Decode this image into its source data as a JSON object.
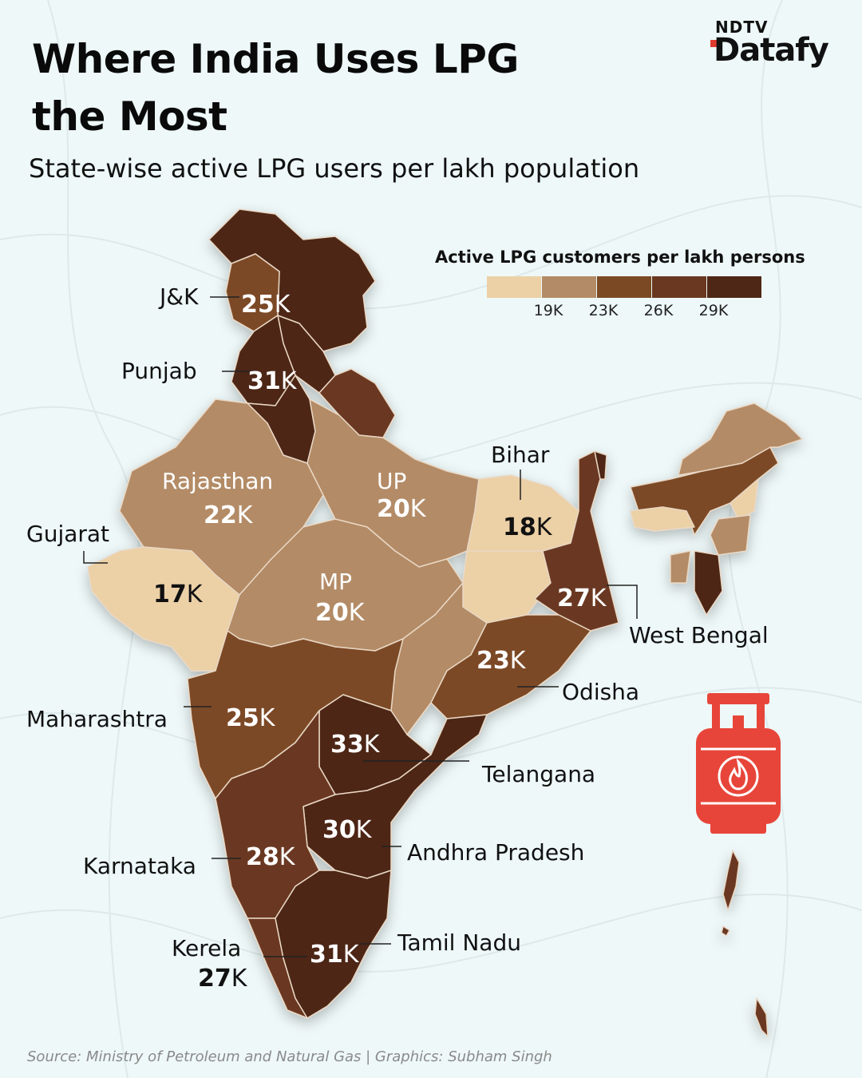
{
  "title": "Where India Uses LPG the Most",
  "subtitle": "State-wise active LPG users per lakh population",
  "brand": {
    "top": "NDTV",
    "bottom": "Datafy"
  },
  "legend": {
    "title": "Active LPG customers per lakh persons",
    "colors": [
      "#ecd0a6",
      "#b38b66",
      "#7b4a25",
      "#6a3820",
      "#4e2716"
    ],
    "ticks": [
      "19K",
      "23K",
      "26K",
      "29K"
    ]
  },
  "regions": [
    {
      "name": "J&K",
      "value": "25",
      "unit": "K"
    },
    {
      "name": "Punjab",
      "value": "31",
      "unit": "K"
    },
    {
      "name": "Rajasthan",
      "value": "22",
      "unit": "K"
    },
    {
      "name": "UP",
      "value": "20",
      "unit": "K"
    },
    {
      "name": "Bihar",
      "value": "18",
      "unit": "K"
    },
    {
      "name": "Gujarat",
      "value": "17",
      "unit": "K"
    },
    {
      "name": "MP",
      "value": "20",
      "unit": "K"
    },
    {
      "name": "West Bengal",
      "value": "27",
      "unit": "K"
    },
    {
      "name": "Odisha",
      "value": "23",
      "unit": "K"
    },
    {
      "name": "Maharashtra",
      "value": "25",
      "unit": "K"
    },
    {
      "name": "Telangana",
      "value": "33",
      "unit": "K"
    },
    {
      "name": "Andhra Pradesh",
      "value": "30",
      "unit": "K"
    },
    {
      "name": "Karnataka",
      "value": "28",
      "unit": "K"
    },
    {
      "name": "Kerela",
      "value": "27",
      "unit": "K"
    },
    {
      "name": "Tamil Nadu",
      "value": "31",
      "unit": "K"
    }
  ],
  "icon": "lpg-cylinder-icon",
  "source": "Source: Ministry of Petroleum and Natural Gas |  Graphics: Subham Singh"
}
